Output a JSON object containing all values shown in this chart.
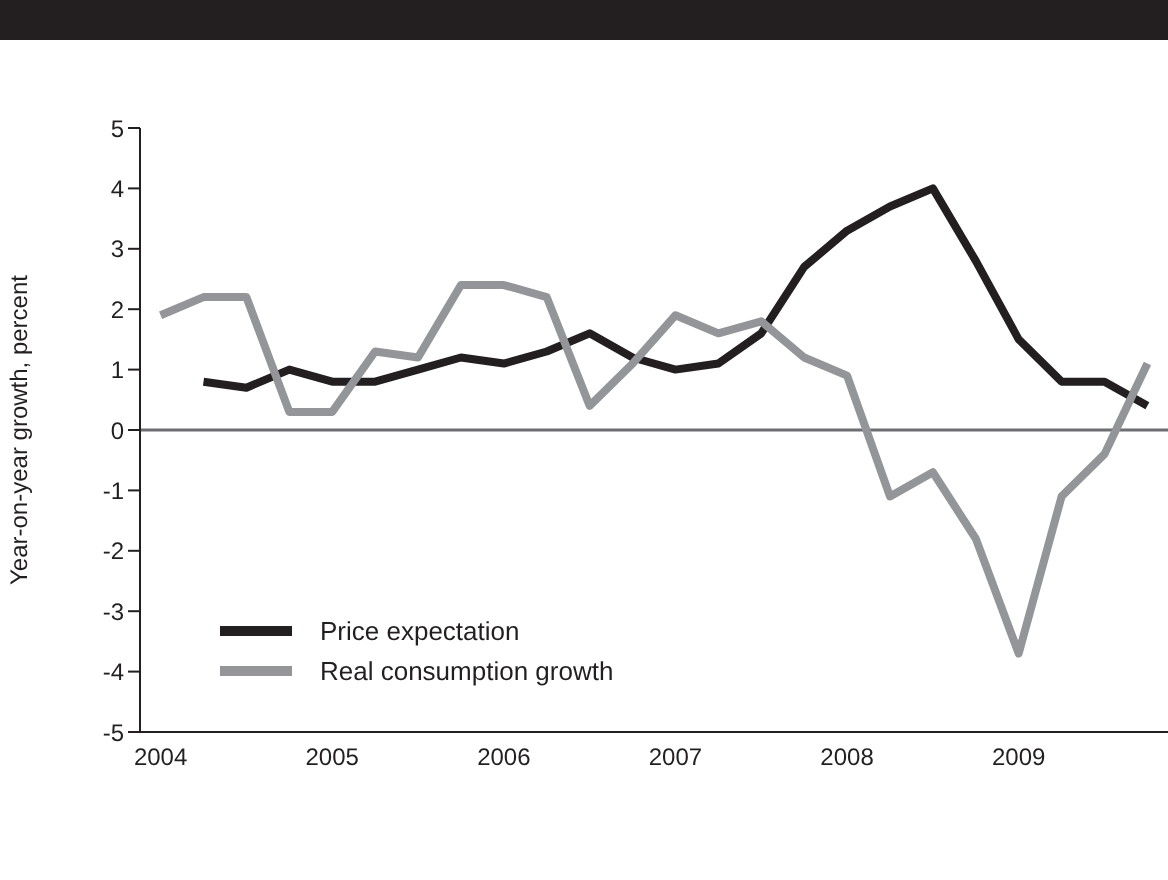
{
  "chart_data": {
    "type": "line",
    "ylabel": "Year-on-year growth, percent",
    "x": [
      2004,
      2004.25,
      2004.5,
      2004.75,
      2005,
      2005.25,
      2005.5,
      2005.75,
      2006,
      2006.25,
      2006.5,
      2006.75,
      2007,
      2007.25,
      2007.5,
      2007.75,
      2008,
      2008.25,
      2008.5,
      2008.75,
      2009,
      2009.25,
      2009.5,
      2009.75
    ],
    "series": [
      {
        "name": "Price expectation",
        "color": "#231f20",
        "values": [
          null,
          0.8,
          0.7,
          1.0,
          0.8,
          0.8,
          1.0,
          1.2,
          1.1,
          1.3,
          1.6,
          1.2,
          1.0,
          1.1,
          1.6,
          2.7,
          3.3,
          3.7,
          4.0,
          2.8,
          1.5,
          0.8,
          0.8,
          0.4
        ]
      },
      {
        "name": "Real consumption growth",
        "color": "#939598",
        "values": [
          1.9,
          2.2,
          2.2,
          0.3,
          0.3,
          1.3,
          1.2,
          2.4,
          2.4,
          2.2,
          0.4,
          1.1,
          1.9,
          1.6,
          1.8,
          1.2,
          0.9,
          -1.1,
          -0.7,
          -1.8,
          -3.7,
          -1.1,
          -0.4,
          1.1
        ]
      }
    ],
    "xlim": [
      2003.88,
      2009.87
    ],
    "xticks": [
      2004,
      2005,
      2006,
      2007,
      2008,
      2009
    ],
    "ylim": [
      -5,
      5
    ],
    "yticks": [
      -5,
      -4,
      -3,
      -2,
      -1,
      0,
      1,
      2,
      3,
      4,
      5
    ],
    "ref_lines": [
      {
        "axis": "y",
        "value": 0,
        "color": "#6d6e71"
      }
    ],
    "grid": false,
    "legend": "bottom left",
    "marker": "none",
    "line_style": "solid"
  }
}
